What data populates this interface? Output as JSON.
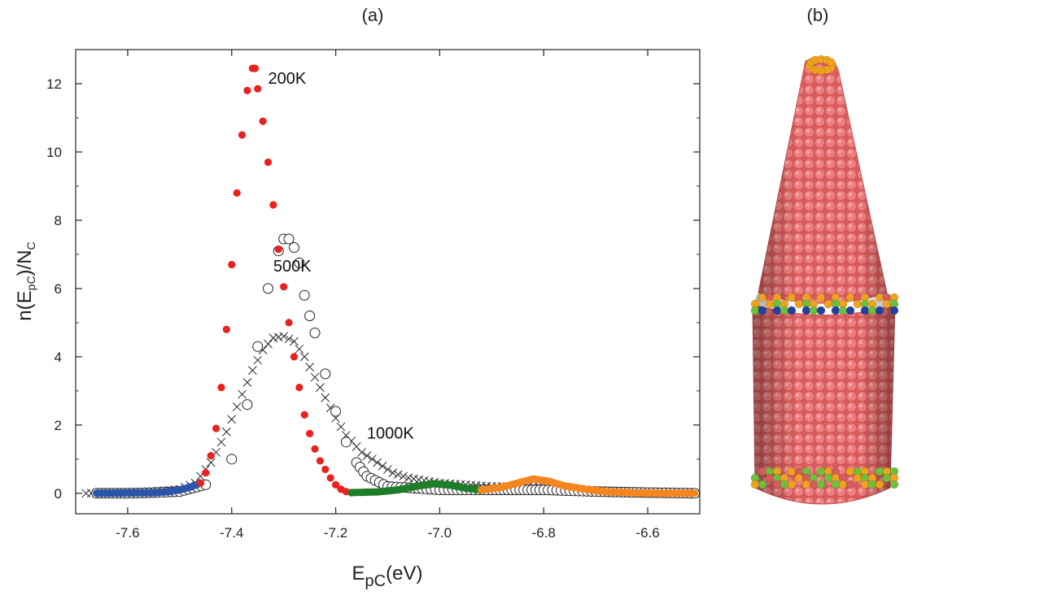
{
  "panels": {
    "a": "(a)",
    "b": "(b)"
  },
  "colors": {
    "blue": "#2b55a8",
    "red": "#e8231f",
    "green": "#1e7d2a",
    "orange": "#f5861f",
    "tube_body": "#d85a5a",
    "tube_atom_highlight": "#ec8080",
    "tube_green": "#6cc13a",
    "tube_orange": "#f0a21e",
    "tube_blue": "#2540a0"
  },
  "chart_data": {
    "type": "scatter",
    "title": "",
    "xlabel": "E",
    "xlabel_sub": "pC",
    "xlabel_units": "(eV)",
    "ylabel_parts": [
      "n(E",
      "pC",
      ")/N",
      "C"
    ],
    "xlim": [
      -7.7,
      -6.5
    ],
    "ylim": [
      -0.6,
      13.0
    ],
    "xticks": [
      -7.6,
      -7.4,
      -7.2,
      -7.0,
      -6.8,
      -6.6
    ],
    "xtick_labels": [
      "-7.6",
      "-7.4",
      "-7.2",
      "-7.0",
      "-6.8",
      "-6.6"
    ],
    "yticks": [
      0,
      2,
      4,
      6,
      8,
      10,
      12
    ],
    "ytick_labels": [
      "0",
      "2",
      "4",
      "6",
      "8",
      "10",
      "12"
    ],
    "grid": false,
    "annotations": [
      {
        "text": "200K",
        "x": -7.33,
        "y": 12.0
      },
      {
        "text": "500K",
        "x": -7.32,
        "y": 6.5
      },
      {
        "text": "1000K",
        "x": -7.14,
        "y": 1.6
      }
    ],
    "series": [
      {
        "label": "200K",
        "marker": "filled-circle",
        "segments": [
          {
            "color": "blue",
            "x_range": [
              -7.66,
              -7.46
            ],
            "points": [
              [
                -7.66,
                0.0
              ],
              [
                -7.6,
                0.01
              ],
              [
                -7.55,
                0.02
              ],
              [
                -7.52,
                0.05
              ],
              [
                -7.5,
                0.1
              ],
              [
                -7.48,
                0.18
              ],
              [
                -7.47,
                0.24
              ],
              [
                -7.46,
                0.3
              ]
            ]
          },
          {
            "color": "red",
            "x_range": [
              -7.46,
              -7.17
            ],
            "points": [
              [
                -7.46,
                0.3
              ],
              [
                -7.45,
                0.6
              ],
              [
                -7.44,
                1.1
              ],
              [
                -7.43,
                1.9
              ],
              [
                -7.42,
                3.1
              ],
              [
                -7.41,
                4.8
              ],
              [
                -7.4,
                6.7
              ],
              [
                -7.39,
                8.8
              ],
              [
                -7.38,
                10.5
              ],
              [
                -7.37,
                11.8
              ],
              [
                -7.36,
                12.45
              ],
              [
                -7.355,
                12.45
              ],
              [
                -7.35,
                11.85
              ],
              [
                -7.34,
                10.9
              ],
              [
                -7.33,
                9.7
              ],
              [
                -7.32,
                8.45
              ],
              [
                -7.31,
                7.15
              ],
              [
                -7.3,
                6.05
              ],
              [
                -7.29,
                5.0
              ],
              [
                -7.28,
                4.0
              ],
              [
                -7.27,
                3.1
              ],
              [
                -7.26,
                2.3
              ],
              [
                -7.25,
                1.75
              ],
              [
                -7.24,
                1.3
              ],
              [
                -7.23,
                0.95
              ],
              [
                -7.22,
                0.7
              ],
              [
                -7.21,
                0.45
              ],
              [
                -7.2,
                0.25
              ],
              [
                -7.19,
                0.12
              ],
              [
                -7.18,
                0.05
              ],
              [
                -7.17,
                0.02
              ]
            ]
          },
          {
            "color": "green",
            "x_range": [
              -7.17,
              -6.92
            ],
            "points": [
              [
                -7.17,
                0.02
              ],
              [
                -7.12,
                0.04
              ],
              [
                -7.08,
                0.1
              ],
              [
                -7.04,
                0.22
              ],
              [
                -7.01,
                0.28
              ],
              [
                -6.98,
                0.24
              ],
              [
                -6.95,
                0.15
              ],
              [
                -6.92,
                0.1
              ]
            ]
          },
          {
            "color": "orange",
            "x_range": [
              -6.92,
              -6.51
            ],
            "points": [
              [
                -6.92,
                0.1
              ],
              [
                -6.88,
                0.18
              ],
              [
                -6.85,
                0.3
              ],
              [
                -6.82,
                0.42
              ],
              [
                -6.79,
                0.35
              ],
              [
                -6.76,
                0.22
              ],
              [
                -6.72,
                0.12
              ],
              [
                -6.68,
                0.05
              ],
              [
                -6.62,
                0.01
              ],
              [
                -6.56,
                0.0
              ],
              [
                -6.51,
                0.0
              ]
            ]
          }
        ]
      },
      {
        "label": "500K",
        "marker": "open-circle",
        "points": [
          [
            -7.66,
            0.0
          ],
          [
            -7.6,
            0.0
          ],
          [
            -7.55,
            0.02
          ],
          [
            -7.5,
            0.05
          ],
          [
            -7.45,
            0.25
          ],
          [
            -7.4,
            1.0
          ],
          [
            -7.37,
            2.6
          ],
          [
            -7.35,
            4.3
          ],
          [
            -7.33,
            6.0
          ],
          [
            -7.31,
            7.1
          ],
          [
            -7.3,
            7.45
          ],
          [
            -7.29,
            7.45
          ],
          [
            -7.28,
            7.2
          ],
          [
            -7.27,
            6.75
          ],
          [
            -7.26,
            5.8
          ],
          [
            -7.25,
            5.2
          ],
          [
            -7.24,
            4.7
          ],
          [
            -7.22,
            3.5
          ],
          [
            -7.2,
            2.4
          ],
          [
            -7.18,
            1.5
          ],
          [
            -7.16,
            0.9
          ],
          [
            -7.14,
            0.5
          ],
          [
            -7.1,
            0.2
          ],
          [
            -7.0,
            0.1
          ],
          [
            -6.9,
            0.1
          ],
          [
            -6.8,
            0.1
          ],
          [
            -6.7,
            0.05
          ],
          [
            -6.6,
            0.02
          ],
          [
            -6.51,
            0.0
          ]
        ]
      },
      {
        "label": "1000K",
        "marker": "cross",
        "points": [
          [
            -7.68,
            0.0
          ],
          [
            -7.6,
            0.02
          ],
          [
            -7.55,
            0.05
          ],
          [
            -7.5,
            0.12
          ],
          [
            -7.47,
            0.3
          ],
          [
            -7.44,
            0.9
          ],
          [
            -7.41,
            1.8
          ],
          [
            -7.38,
            2.9
          ],
          [
            -7.36,
            3.6
          ],
          [
            -7.34,
            4.2
          ],
          [
            -7.32,
            4.55
          ],
          [
            -7.3,
            4.6
          ],
          [
            -7.28,
            4.45
          ],
          [
            -7.26,
            4.0
          ],
          [
            -7.24,
            3.4
          ],
          [
            -7.22,
            2.8
          ],
          [
            -7.2,
            2.2
          ],
          [
            -7.18,
            1.7
          ],
          [
            -7.15,
            1.2
          ],
          [
            -7.12,
            0.9
          ],
          [
            -7.09,
            0.6
          ],
          [
            -7.06,
            0.45
          ],
          [
            -7.0,
            0.3
          ],
          [
            -6.95,
            0.25
          ],
          [
            -6.9,
            0.2
          ],
          [
            -6.85,
            0.2
          ],
          [
            -6.8,
            0.22
          ],
          [
            -6.75,
            0.15
          ],
          [
            -6.7,
            0.08
          ],
          [
            -6.6,
            0.03
          ],
          [
            -6.51,
            0.0
          ]
        ]
      }
    ]
  }
}
